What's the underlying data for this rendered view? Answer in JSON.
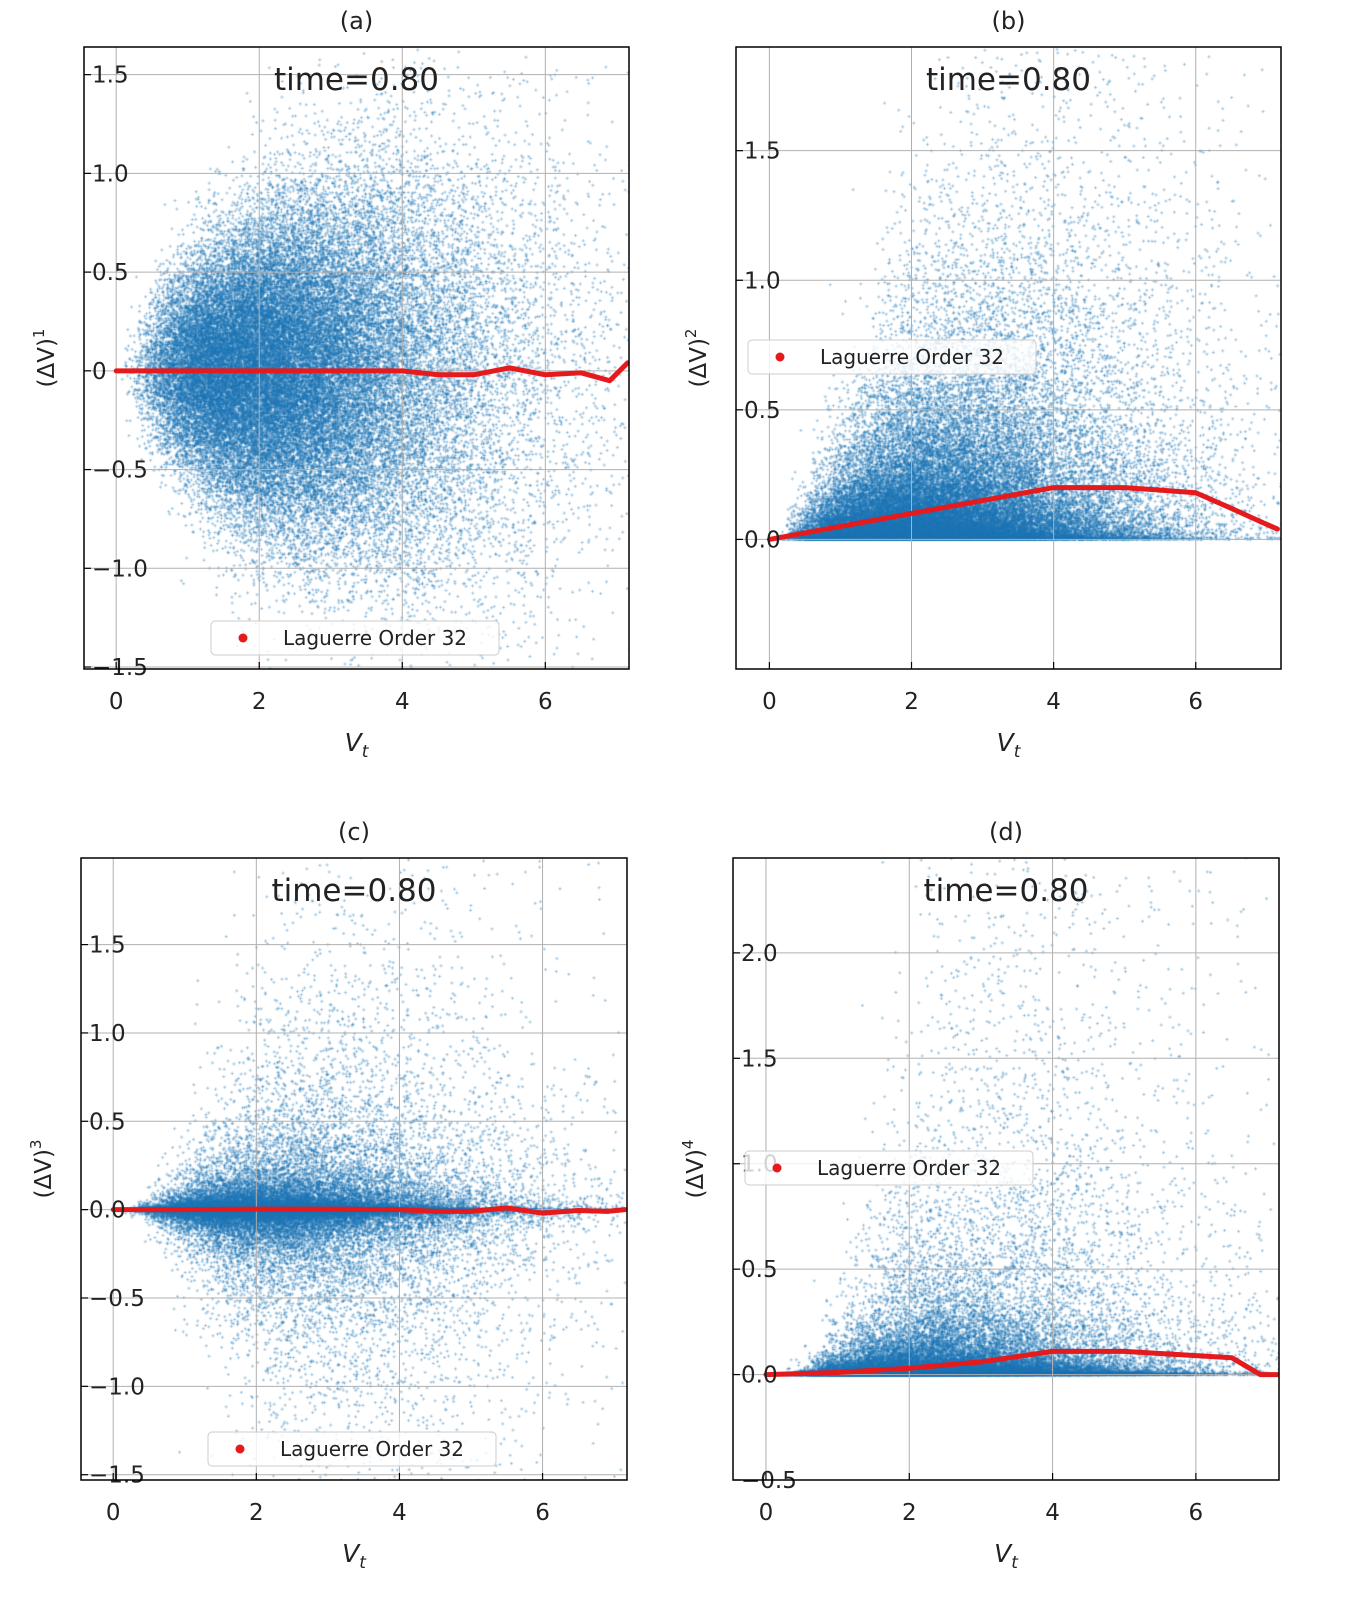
{
  "chart_data": [
    {
      "type": "scatter",
      "title": "(a)",
      "annotation": "time=0.80",
      "xlabel": {
        "base": "V",
        "sub": "t"
      },
      "ylabel": {
        "base": "(ΔV)",
        "sup": "1"
      },
      "xticks": [
        0,
        2,
        4,
        6
      ],
      "yticks": [
        1.5,
        1.0,
        0.5,
        0,
        -0.5,
        -1.0,
        -1.5
      ],
      "ytick_labels": [
        "1.5",
        "1.0",
        "0.5",
        "0",
        "−0.5",
        "−1.0",
        "−1.5"
      ],
      "xlim": [
        -0.45,
        7.17
      ],
      "ylim": [
        -1.51,
        1.64
      ],
      "grid": true,
      "scatter": {
        "color": "#1f77b4",
        "marker": "+",
        "moment": 1
      },
      "legend": {
        "label": "Laguerre Order 32",
        "placement": "lower center"
      },
      "series": [
        {
          "name": "Laguerre Order 32",
          "color": "#e41a1c",
          "x": [
            0,
            1,
            2,
            3,
            4,
            4.5,
            5,
            5.5,
            6,
            6.5,
            6.9,
            7.15
          ],
          "y": [
            0,
            0,
            0,
            0,
            0,
            -0.02,
            -0.02,
            0.015,
            -0.02,
            -0.01,
            -0.05,
            0.04
          ]
        }
      ]
    },
    {
      "type": "scatter",
      "title": "(b)",
      "annotation": "time=0.80",
      "xlabel": {
        "base": "V",
        "sub": "t"
      },
      "ylabel": {
        "base": "(ΔV)",
        "sup": "2"
      },
      "xticks": [
        0,
        2,
        4,
        6
      ],
      "yticks": [
        1.5,
        1.0,
        0.5,
        0
      ],
      "ytick_labels": [
        "1.5",
        "1.0",
        "0.5",
        "0.0"
      ],
      "xlim": [
        -0.47,
        7.2
      ],
      "ylim": [
        -0.5,
        1.9
      ],
      "grid": true,
      "scatter": {
        "color": "#1f77b4",
        "marker": "+",
        "moment": 2
      },
      "legend": {
        "label": "Laguerre Order 32",
        "placement": "center left"
      },
      "series": [
        {
          "name": "Laguerre Order 32",
          "color": "#e41a1c",
          "x": [
            0,
            1,
            2,
            3,
            4,
            4.5,
            5,
            5.5,
            6,
            6.5,
            6.9,
            7.15
          ],
          "y": [
            0,
            0.05,
            0.1,
            0.15,
            0.2,
            0.2,
            0.2,
            0.19,
            0.18,
            0.12,
            0.07,
            0.04
          ]
        }
      ]
    },
    {
      "type": "scatter",
      "title": "(c)",
      "annotation": "time=0.80",
      "xlabel": {
        "base": "V",
        "sub": "t"
      },
      "ylabel": {
        "base": "(ΔV)",
        "sup": "3"
      },
      "xticks": [
        0,
        2,
        4,
        6
      ],
      "yticks": [
        1.5,
        1.0,
        0.5,
        0,
        -0.5,
        -1.0,
        -1.5
      ],
      "ytick_labels": [
        "1.5",
        "1.0",
        "0.5",
        "0.0",
        "−0.5",
        "−1.0",
        "−1.5"
      ],
      "xlim": [
        -0.45,
        7.18
      ],
      "ylim": [
        -1.53,
        1.99
      ],
      "grid": true,
      "scatter": {
        "color": "#1f77b4",
        "marker": "+",
        "moment": 3
      },
      "legend": {
        "label": "Laguerre Order 32",
        "placement": "lower center"
      },
      "series": [
        {
          "name": "Laguerre Order 32",
          "color": "#e41a1c",
          "x": [
            0,
            1,
            2,
            3,
            4,
            4.5,
            5,
            5.5,
            6,
            6.5,
            6.9,
            7.15
          ],
          "y": [
            0,
            0,
            0.003,
            0.003,
            0,
            -0.01,
            -0.01,
            0.01,
            -0.02,
            -0.005,
            -0.01,
            0
          ]
        }
      ]
    },
    {
      "type": "scatter",
      "title": "(d)",
      "annotation": "time=0.80",
      "xlabel": {
        "base": "V",
        "sub": "t"
      },
      "ylabel": {
        "base": "(ΔV)",
        "sup": "4"
      },
      "xticks": [
        0,
        2,
        4,
        6
      ],
      "yticks": [
        2.0,
        1.5,
        1.0,
        0.5,
        0,
        -0.5
      ],
      "ytick_labels": [
        "2.0",
        "1.5",
        "1.0",
        "0.5",
        "0.0",
        "−0.5"
      ],
      "xlim": [
        -0.46,
        7.16
      ],
      "ylim": [
        -0.5,
        2.45
      ],
      "grid": true,
      "scatter": {
        "color": "#1f77b4",
        "marker": "+",
        "moment": 4
      },
      "legend": {
        "label": "Laguerre Order 32",
        "placement": "center left"
      },
      "series": [
        {
          "name": "Laguerre Order 32",
          "color": "#e41a1c",
          "x": [
            0,
            1,
            2,
            3,
            4,
            4.5,
            5,
            5.5,
            6,
            6.5,
            6.9,
            7.15
          ],
          "y": [
            0,
            0.01,
            0.03,
            0.06,
            0.11,
            0.11,
            0.11,
            0.1,
            0.09,
            0.08,
            0,
            0
          ]
        }
      ]
    }
  ]
}
